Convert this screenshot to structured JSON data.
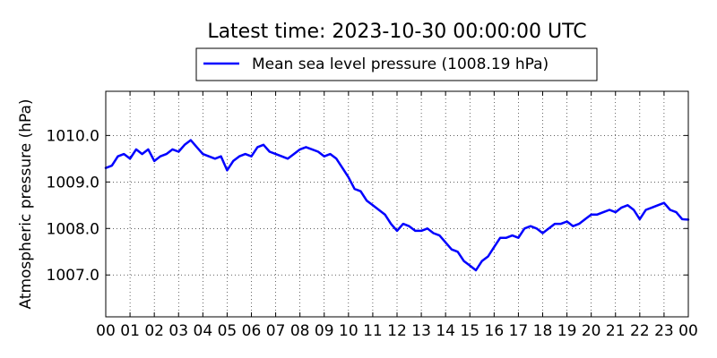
{
  "chart_data": {
    "type": "line",
    "title": "Latest time: 2023-10-30 00:00:00 UTC",
    "xlabel": "",
    "ylabel": "Atmospheric pressure (hPa)",
    "xlim": [
      0,
      24
    ],
    "ylim": [
      1006.1,
      1010.95
    ],
    "x_ticks": [
      {
        "value": 0,
        "label": "00"
      },
      {
        "value": 1,
        "label": "01"
      },
      {
        "value": 2,
        "label": "02"
      },
      {
        "value": 3,
        "label": "03"
      },
      {
        "value": 4,
        "label": "04"
      },
      {
        "value": 5,
        "label": "05"
      },
      {
        "value": 6,
        "label": "06"
      },
      {
        "value": 7,
        "label": "07"
      },
      {
        "value": 8,
        "label": "08"
      },
      {
        "value": 9,
        "label": "09"
      },
      {
        "value": 10,
        "label": "10"
      },
      {
        "value": 11,
        "label": "11"
      },
      {
        "value": 12,
        "label": "12"
      },
      {
        "value": 13,
        "label": "13"
      },
      {
        "value": 14,
        "label": "14"
      },
      {
        "value": 15,
        "label": "15"
      },
      {
        "value": 16,
        "label": "16"
      },
      {
        "value": 17,
        "label": "17"
      },
      {
        "value": 18,
        "label": "18"
      },
      {
        "value": 19,
        "label": "19"
      },
      {
        "value": 20,
        "label": "20"
      },
      {
        "value": 21,
        "label": "21"
      },
      {
        "value": 22,
        "label": "22"
      },
      {
        "value": 23,
        "label": "23"
      },
      {
        "value": 24,
        "label": "00"
      }
    ],
    "y_ticks": [
      {
        "value": 1007.0,
        "label": "1007.0"
      },
      {
        "value": 1008.0,
        "label": "1008.0"
      },
      {
        "value": 1009.0,
        "label": "1009.0"
      },
      {
        "value": 1010.0,
        "label": "1010.0"
      }
    ],
    "grid": true,
    "grid_style": "dotted",
    "legend_position": "top-center",
    "series": [
      {
        "name": "Mean sea level pressure (1008.19 hPa)",
        "color": "#0000ff",
        "x": [
          0,
          0.25,
          0.5,
          0.75,
          1.0,
          1.25,
          1.5,
          1.75,
          2.0,
          2.25,
          2.5,
          2.75,
          3.0,
          3.25,
          3.5,
          3.75,
          4.0,
          4.25,
          4.5,
          4.75,
          5.0,
          5.25,
          5.5,
          5.75,
          6.0,
          6.25,
          6.5,
          6.75,
          7.0,
          7.25,
          7.5,
          7.75,
          8.0,
          8.25,
          8.5,
          8.75,
          9.0,
          9.25,
          9.5,
          9.75,
          10.0,
          10.25,
          10.5,
          10.75,
          11.0,
          11.25,
          11.5,
          11.75,
          12.0,
          12.25,
          12.5,
          12.75,
          13.0,
          13.25,
          13.5,
          13.75,
          14.0,
          14.25,
          14.5,
          14.75,
          15.0,
          15.25,
          15.5,
          15.75,
          16.0,
          16.25,
          16.5,
          16.75,
          17.0,
          17.25,
          17.5,
          17.75,
          18.0,
          18.25,
          18.5,
          18.75,
          19.0,
          19.25,
          19.5,
          19.75,
          20.0,
          20.25,
          20.5,
          20.75,
          21.0,
          21.25,
          21.5,
          21.75,
          22.0,
          22.25,
          22.5,
          22.75,
          23.0,
          23.25,
          23.5,
          23.75,
          24.0
        ],
        "values": [
          1009.3,
          1009.35,
          1009.55,
          1009.6,
          1009.5,
          1009.7,
          1009.6,
          1009.7,
          1009.45,
          1009.55,
          1009.6,
          1009.7,
          1009.65,
          1009.8,
          1009.9,
          1009.75,
          1009.6,
          1009.55,
          1009.5,
          1009.55,
          1009.25,
          1009.45,
          1009.55,
          1009.6,
          1009.55,
          1009.75,
          1009.8,
          1009.65,
          1009.6,
          1009.55,
          1009.5,
          1009.6,
          1009.7,
          1009.75,
          1009.7,
          1009.65,
          1009.55,
          1009.6,
          1009.5,
          1009.3,
          1009.1,
          1008.85,
          1008.8,
          1008.6,
          1008.5,
          1008.4,
          1008.3,
          1008.1,
          1007.95,
          1008.1,
          1008.05,
          1007.95,
          1007.95,
          1008.0,
          1007.9,
          1007.85,
          1007.7,
          1007.55,
          1007.5,
          1007.3,
          1007.2,
          1007.1,
          1007.3,
          1007.4,
          1007.6,
          1007.8,
          1007.8,
          1007.85,
          1007.8,
          1008.0,
          1008.05,
          1008.0,
          1007.9,
          1008.0,
          1008.1,
          1008.1,
          1008.15,
          1008.05,
          1008.1,
          1008.2,
          1008.3,
          1008.3,
          1008.35,
          1008.4,
          1008.35,
          1008.45,
          1008.5,
          1008.4,
          1008.2,
          1008.4,
          1008.45,
          1008.5,
          1008.55,
          1008.4,
          1008.35,
          1008.2,
          1008.19
        ]
      }
    ]
  }
}
